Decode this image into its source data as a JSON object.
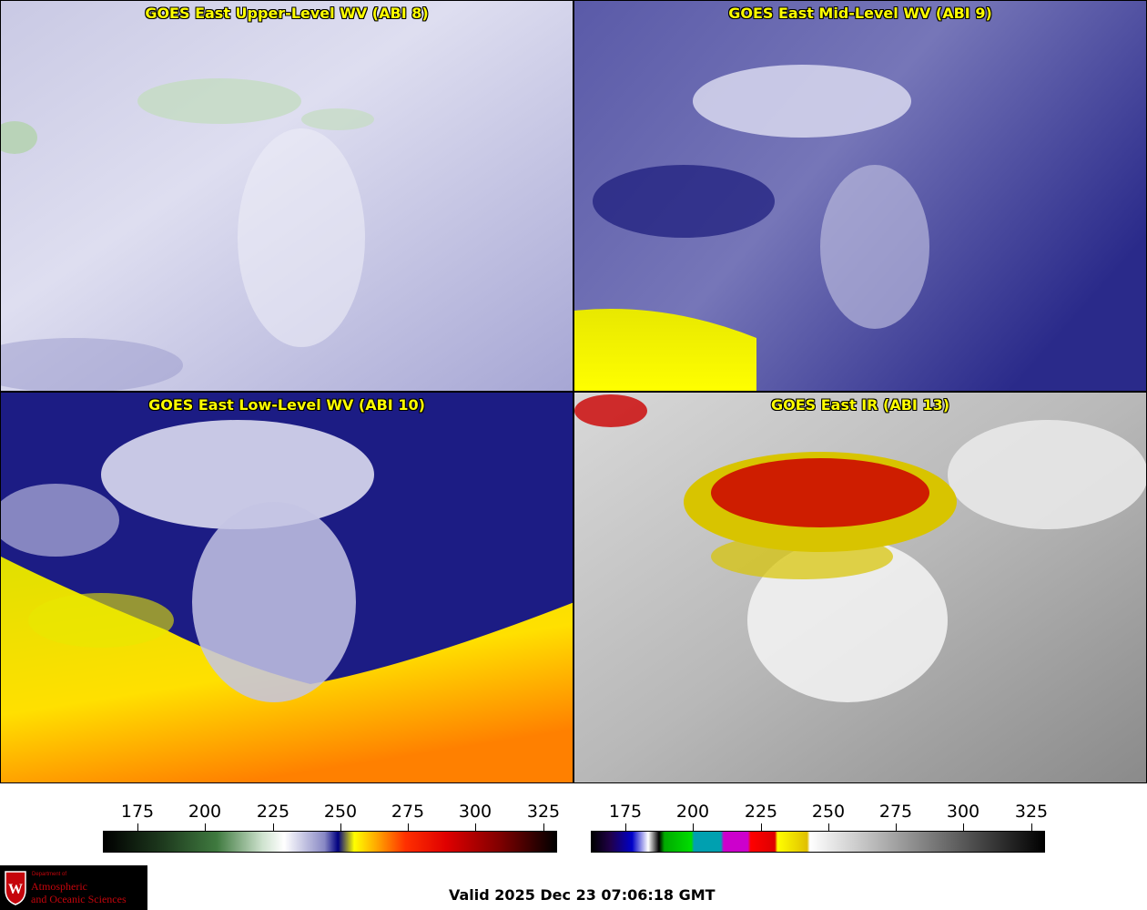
{
  "panels": [
    {
      "title": "GOES East Upper-Level WV (ABI 8)",
      "scheme": "upper"
    },
    {
      "title": "GOES East Mid-Level WV (ABI 9)",
      "scheme": "mid"
    },
    {
      "title": "GOES East Low-Level WV (ABI 10)",
      "scheme": "low"
    },
    {
      "title": "GOES East IR (ABI 13)",
      "scheme": "ir"
    }
  ],
  "colorbars": [
    {
      "name": "wv",
      "ticks": [
        "175",
        "200",
        "225",
        "250",
        "275",
        "300",
        "325"
      ],
      "range": [
        163,
        331
      ],
      "stops": [
        [
          163,
          "#000000"
        ],
        [
          185,
          "#1e3a1e"
        ],
        [
          205,
          "#3f7a3f"
        ],
        [
          222,
          "#cfe3cf"
        ],
        [
          230,
          "#ffffff"
        ],
        [
          245,
          "#8888c4"
        ],
        [
          250,
          "#000080"
        ],
        [
          256,
          "#ffff00"
        ],
        [
          265,
          "#ffa000"
        ],
        [
          275,
          "#ff3000"
        ],
        [
          290,
          "#e00000"
        ],
        [
          310,
          "#800000"
        ],
        [
          331,
          "#000000"
        ]
      ]
    },
    {
      "name": "ir",
      "ticks": [
        "175",
        "200",
        "225",
        "250",
        "275",
        "300",
        "325"
      ],
      "range": [
        163,
        331
      ],
      "stops": [
        [
          163,
          "#000000"
        ],
        [
          170,
          "#20004a"
        ],
        [
          178,
          "#0000c8"
        ],
        [
          184,
          "#ffffff"
        ],
        [
          188,
          "#000000"
        ],
        [
          190,
          "#00aa00"
        ],
        [
          200,
          "#00dd00"
        ],
        [
          201,
          "#00a0b0"
        ],
        [
          211,
          "#00a0b0"
        ],
        [
          212,
          "#cc00cc"
        ],
        [
          221,
          "#cc00cc"
        ],
        [
          222,
          "#ff0000"
        ],
        [
          231,
          "#dd0000"
        ],
        [
          232,
          "#ffff00"
        ],
        [
          243,
          "#e0c000"
        ],
        [
          244,
          "#ffffff"
        ],
        [
          331,
          "#000000"
        ]
      ]
    }
  ],
  "logo": {
    "dept": "Department of",
    "line1": "Atmospheric",
    "line2": "and Oceanic Sciences"
  },
  "valid_label": "Valid 2025 Dec 23 07:06:18 GMT"
}
